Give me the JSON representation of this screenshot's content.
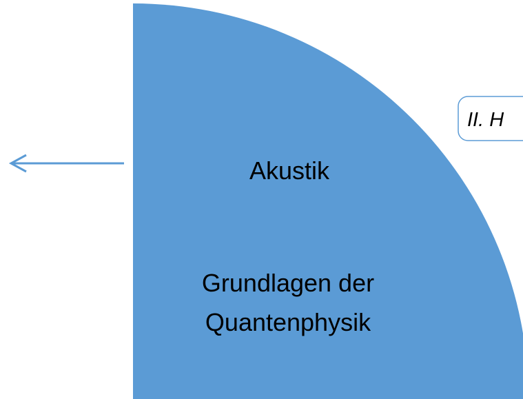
{
  "labels": {
    "sector_top": "Akustik",
    "sector_bottom": [
      "Grundlagen der",
      "Quantenphysik"
    ],
    "box": "II. H"
  }
}
